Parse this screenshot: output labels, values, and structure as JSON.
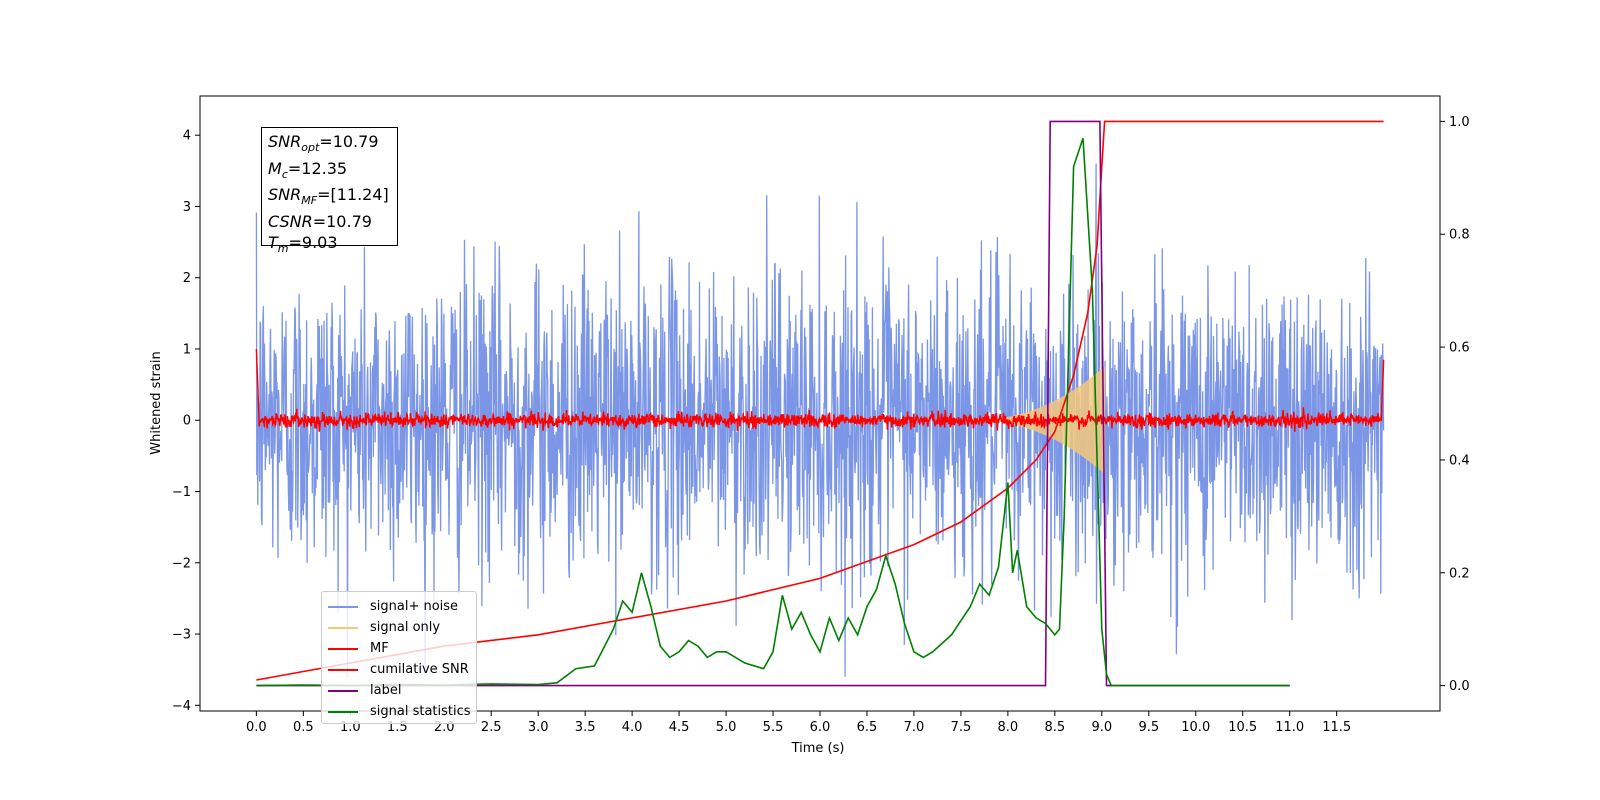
{
  "chart_data": {
    "type": "line",
    "xlabel": "Time (s)",
    "ylabel": "Whitened strain",
    "xlim": [
      -0.6,
      12.6
    ],
    "ylim": [
      -4.08,
      4.55
    ],
    "y2lim": [
      -0.045,
      1.045
    ],
    "xticks": [
      "0.0",
      "0.5",
      "1.0",
      "1.5",
      "2.0",
      "2.5",
      "3.0",
      "3.5",
      "4.0",
      "4.5",
      "5.0",
      "5.5",
      "6.0",
      "6.5",
      "7.0",
      "7.5",
      "8.0",
      "8.5",
      "9.0",
      "9.5",
      "10.0",
      "10.5",
      "11.0",
      "11.5"
    ],
    "yticks": [
      "4",
      "3",
      "2",
      "1",
      "0",
      "−1",
      "−2",
      "−3",
      "−4"
    ],
    "y2ticks": [
      "1.0",
      "0.8",
      "0.6",
      "0.4",
      "0.2",
      "0.0"
    ],
    "legend_position": "lower-left",
    "grid": false,
    "annotation": {
      "lines": [
        {
          "base": "SNR",
          "sub": "opt",
          "value": "=10.79"
        },
        {
          "base": "M",
          "sub": "c",
          "value": "=12.35"
        },
        {
          "base": "SNR",
          "sub": "MF",
          "value": "=[11.24]"
        },
        {
          "base": "CSNR",
          "sub": "",
          "value": "=10.79"
        },
        {
          "base": "T",
          "sub": "m",
          "value": "=9.03"
        }
      ]
    },
    "series": [
      {
        "name": "signal+ noise",
        "color": "#7b96e6",
        "axis": "left",
        "description_kind": "noise",
        "amplitude_std": 1.0,
        "x_range": [
          0.0,
          12.0
        ]
      },
      {
        "name": "signal only",
        "color": "#f5c87a",
        "axis": "left",
        "description_kind": "chirp",
        "peak_time": 9.03,
        "peak_amplitude": 0.75
      },
      {
        "name": "MF",
        "color": "#ff0000",
        "axis": "left",
        "description_kind": "small-noise",
        "amplitude_std": 0.05
      },
      {
        "name": "cumilative SNR",
        "color": "#ff0000",
        "axis": "right",
        "x": [
          0.0,
          1.0,
          2.0,
          3.0,
          4.0,
          5.0,
          6.0,
          7.0,
          7.5,
          8.0,
          8.3,
          8.5,
          8.7,
          8.85,
          8.95,
          9.0,
          9.03,
          12.0
        ],
        "y": [
          0.01,
          0.04,
          0.07,
          0.09,
          0.12,
          0.15,
          0.19,
          0.25,
          0.29,
          0.35,
          0.4,
          0.45,
          0.55,
          0.66,
          0.78,
          0.92,
          1.0,
          1.0
        ]
      },
      {
        "name": "label",
        "color": "#800080",
        "axis": "right",
        "x": [
          0.0,
          8.4,
          8.45,
          8.98,
          9.05,
          11.0
        ],
        "y": [
          0.0,
          0.0,
          1.0,
          1.0,
          0.0,
          0.0
        ]
      },
      {
        "name": "signal statistics",
        "color": "#008000",
        "axis": "right",
        "x": [
          0.0,
          0.5,
          1.0,
          1.5,
          2.0,
          2.5,
          3.0,
          3.2,
          3.4,
          3.6,
          3.8,
          3.9,
          4.0,
          4.1,
          4.2,
          4.3,
          4.4,
          4.5,
          4.6,
          4.7,
          4.8,
          4.9,
          5.0,
          5.2,
          5.4,
          5.5,
          5.6,
          5.7,
          5.8,
          5.9,
          6.0,
          6.1,
          6.2,
          6.3,
          6.4,
          6.5,
          6.6,
          6.7,
          6.8,
          6.9,
          7.0,
          7.1,
          7.2,
          7.4,
          7.6,
          7.7,
          7.8,
          7.9,
          8.0,
          8.05,
          8.1,
          8.2,
          8.3,
          8.4,
          8.45,
          8.5,
          8.55,
          8.6,
          8.7,
          8.8,
          8.9,
          8.95,
          9.0,
          9.05,
          9.1,
          9.2,
          9.5,
          10.0,
          11.0
        ],
        "y": [
          0.0,
          0.001,
          0.0,
          0.002,
          0.001,
          0.003,
          0.002,
          0.005,
          0.03,
          0.035,
          0.1,
          0.15,
          0.13,
          0.2,
          0.14,
          0.07,
          0.05,
          0.06,
          0.08,
          0.07,
          0.05,
          0.06,
          0.06,
          0.04,
          0.03,
          0.06,
          0.16,
          0.1,
          0.13,
          0.09,
          0.06,
          0.12,
          0.08,
          0.12,
          0.09,
          0.14,
          0.17,
          0.23,
          0.18,
          0.11,
          0.06,
          0.05,
          0.06,
          0.09,
          0.14,
          0.18,
          0.16,
          0.21,
          0.36,
          0.2,
          0.24,
          0.14,
          0.12,
          0.11,
          0.1,
          0.09,
          0.1,
          0.3,
          0.92,
          0.97,
          0.7,
          0.4,
          0.1,
          0.02,
          0.0,
          0.0,
          0.0,
          0.0,
          0.0
        ]
      }
    ]
  }
}
